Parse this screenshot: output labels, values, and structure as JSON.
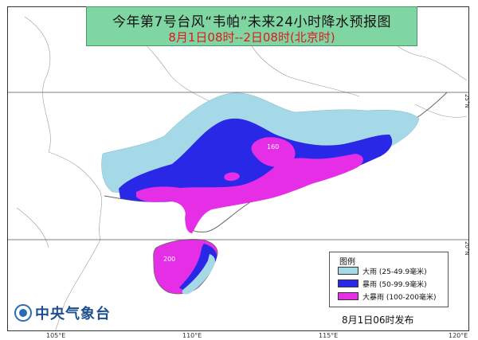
{
  "title": {
    "line1": "今年第7号台风“韦帕”未来24小时降水预报图",
    "line2": "8月1日08时--2日08时(北京时)"
  },
  "grid": {
    "lon_labels": [
      "105°E",
      "110°E",
      "115°E",
      "120°E"
    ],
    "lat_labels": [
      "25°N",
      "20°N"
    ]
  },
  "legend": {
    "title": "图例",
    "items": [
      {
        "label": "大雨 (25-49.9毫米)",
        "color": "#a6d9e8"
      },
      {
        "label": "暴雨 (50-99.9毫米)",
        "color": "#2828e6"
      },
      {
        "label": "大暴雨 (100-200毫米)",
        "color": "#e62ee6"
      }
    ]
  },
  "map_labels": {
    "guangdong_value": "160",
    "hainan_value": "200"
  },
  "footer": {
    "org_name": "中央气象台",
    "release_time": "8月1日06时发布"
  }
}
